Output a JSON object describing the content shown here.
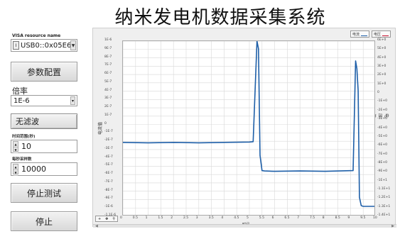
{
  "title": "纳米发电机数据采集系统",
  "visa": {
    "label": "VISA resource name",
    "value": "USB0::0x05E6:"
  },
  "buttons": {
    "params": "参数配置",
    "stop_test": "停止测试",
    "stop": "停止"
  },
  "rate": {
    "label": "倍率",
    "value": "1E-6"
  },
  "filter": {
    "value": "无滤波"
  },
  "fields": [
    {
      "label": "时间范围(秒)",
      "value": "10"
    },
    {
      "label": "每秒采样数",
      "value": "10000"
    }
  ],
  "graph": {
    "legend": [
      {
        "label": "电流",
        "color": "#1e5fa8"
      },
      {
        "label": "电压",
        "color": "#c8102e"
      }
    ],
    "left_axis_label": "电流值",
    "right_axis_label": "电压值",
    "x_axis_label": "时间",
    "toolbar": [
      "+",
      "✥",
      "⚲"
    ]
  },
  "chart_data": {
    "type": "line",
    "title": "",
    "xlabel": "时间",
    "ylabel": "电流值",
    "xlim": [
      0,
      10
    ],
    "ylim": [
      -1.2e-06,
      1.1e-06
    ],
    "x_ticks": [
      "0",
      "0.5",
      "1",
      "1.5",
      "2",
      "2.5",
      "3",
      "3.5",
      "4",
      "4.5",
      "5",
      "5.5",
      "6",
      "6.5",
      "7",
      "7.5",
      "8",
      "8.5",
      "9",
      "9.5",
      "10"
    ],
    "y_ticks_left": [
      "1E-6",
      "9E-7",
      "8E-7",
      "7E-7",
      "6E-7",
      "5E-7",
      "4E-7",
      "3E-7",
      "2E-7",
      "1E-7",
      "0",
      "-1E-7",
      "-2E-7",
      "-3E-7",
      "-4E-7",
      "-5E-7",
      "-6E-7",
      "-7E-7",
      "-8E-7",
      "-9E-7",
      "-1E-6",
      "-1.1E-6"
    ],
    "y_ticks_right": [
      "6E+0",
      "5E+0",
      "4E+0",
      "3E+0",
      "2E+0",
      "1E+0",
      "0",
      "-1E+0",
      "-2E+0",
      "-3E+0",
      "-4E+0",
      "-5E+0",
      "-6E+0",
      "-7E+0",
      "-8E+0",
      "-9E+0",
      "-1E+1",
      "-1.1E+1",
      "-1.2E+1",
      "-1.3E+1",
      "-1.4E+1"
    ],
    "series": [
      {
        "color": "#1e5fa8",
        "x": [
          0,
          1,
          2,
          3,
          4,
          5,
          5.15,
          5.3,
          5.36,
          5.42,
          5.5,
          5.6,
          6,
          7,
          8,
          9.1,
          9.2,
          9.25,
          9.3,
          9.35,
          9.42,
          9.5,
          9.7,
          10
        ],
        "y": [
          -2.3e-07,
          -2.35e-07,
          -2.3e-07,
          -2.35e-07,
          -2.3e-07,
          -2.25e-07,
          -2.2e-07,
          1.1e-06,
          1e-06,
          -4e-07,
          -6e-07,
          -6.05e-07,
          -6.1e-07,
          -6.05e-07,
          -6.1e-07,
          -6e-07,
          8.4e-07,
          7.4e-07,
          4.5e-07,
          -9.5e-07,
          -1.06e-06,
          -1.07e-06,
          -1.07e-06,
          -1.07e-06
        ]
      }
    ],
    "grid": true
  }
}
